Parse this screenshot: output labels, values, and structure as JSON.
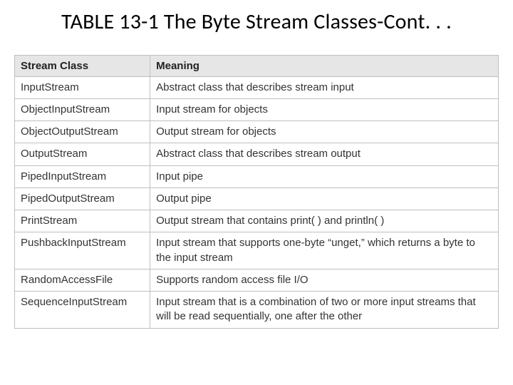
{
  "title": "TABLE 13-1 The Byte Stream Classes-Cont. . .",
  "table": {
    "headers": {
      "class": "Stream Class",
      "meaning": "Meaning"
    },
    "rows": [
      {
        "class": "InputStream",
        "meaning": "Abstract class that describes stream input"
      },
      {
        "class": "ObjectInputStream",
        "meaning": "Input stream for objects"
      },
      {
        "class": "ObjectOutputStream",
        "meaning": "Output stream for objects"
      },
      {
        "class": "OutputStream",
        "meaning": "Abstract class that describes stream output"
      },
      {
        "class": "PipedInputStream",
        "meaning": "Input pipe"
      },
      {
        "class": "PipedOutputStream",
        "meaning": "Output pipe"
      },
      {
        "class": "PrintStream",
        "meaning": "Output stream that contains print( ) and println( )"
      },
      {
        "class": "PushbackInputStream",
        "meaning": "Input stream that supports one-byte “unget,” which returns a byte to the input stream"
      },
      {
        "class": "RandomAccessFile",
        "meaning": "Supports random access file I/O"
      },
      {
        "class": "SequenceInputStream",
        "meaning": "Input stream that is a combination of two or more input streams that will be read sequentially, one after the other"
      }
    ]
  },
  "style": {
    "title_fontsize": 30,
    "title_color": "#000000",
    "header_bg": "#e6e6e6",
    "border_color": "#bfbfbf",
    "cell_fontsize": 15,
    "cell_color": "#333333",
    "col_widths": {
      "class": "28%",
      "meaning": "72%"
    },
    "background": "#ffffff"
  }
}
